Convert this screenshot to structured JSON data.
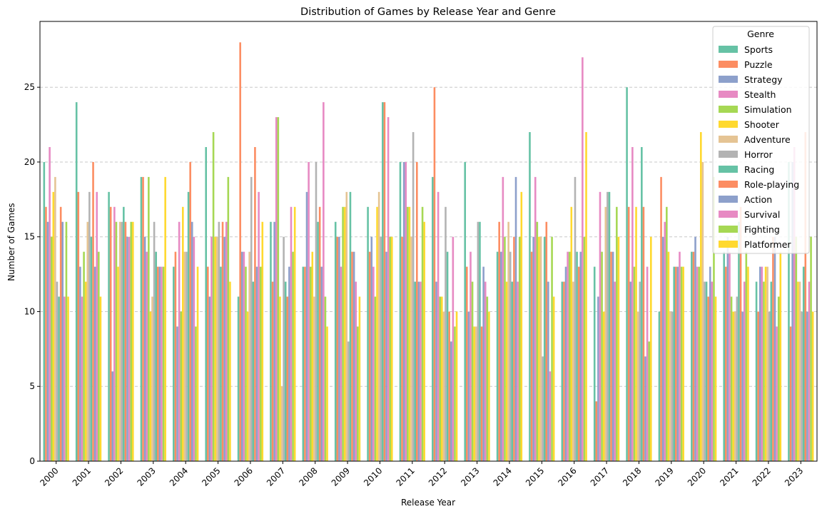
{
  "chart_data": {
    "type": "bar",
    "title": "Distribution of Games by Release Year and Genre",
    "xlabel": "Release Year",
    "ylabel": "Number of Games",
    "ylim": [
      0,
      29.4
    ],
    "yticks": [
      0,
      5,
      10,
      15,
      20,
      25
    ],
    "grid": "y-dashed",
    "legend": {
      "title": "Genre",
      "placement": "top-right"
    },
    "categories": [
      "2000",
      "2001",
      "2002",
      "2003",
      "2004",
      "2005",
      "2006",
      "2007",
      "2008",
      "2009",
      "2010",
      "2011",
      "2012",
      "2013",
      "2014",
      "2015",
      "2016",
      "2017",
      "2018",
      "2019",
      "2020",
      "2021",
      "2022",
      "2023"
    ],
    "series": [
      {
        "name": "Sports",
        "color": "#66c2a5",
        "values": [
          20,
          24,
          18,
          19,
          13,
          21,
          11,
          16,
          13,
          16,
          17,
          20,
          19,
          20,
          14,
          22,
          12,
          13,
          25,
          10,
          14,
          14,
          12,
          20
        ]
      },
      {
        "name": "Puzzle",
        "color": "#fc8d62",
        "values": [
          17,
          18,
          17,
          19,
          14,
          13,
          28,
          12,
          13,
          15,
          14,
          15,
          25,
          13,
          16,
          14,
          12,
          4,
          17,
          19,
          14,
          13,
          10,
          9
        ]
      },
      {
        "name": "Strategy",
        "color": "#8da0cb",
        "values": [
          16,
          13,
          6,
          15,
          9,
          11,
          14,
          16,
          18,
          15,
          15,
          20,
          12,
          10,
          14,
          15,
          13,
          11,
          12,
          15,
          15,
          15,
          13,
          20
        ]
      },
      {
        "name": "Stealth",
        "color": "#e78ac3",
        "values": [
          21,
          11,
          17,
          14,
          16,
          15,
          14,
          23,
          20,
          13,
          13,
          20,
          18,
          14,
          19,
          19,
          14,
          18,
          21,
          16,
          13,
          14,
          13,
          21
        ]
      },
      {
        "name": "Simulation",
        "color": "#a6d854",
        "values": [
          15,
          14,
          16,
          19,
          10,
          22,
          13,
          23,
          13,
          17,
          11,
          17,
          11,
          12,
          15,
          16,
          14,
          14,
          13,
          17,
          13,
          11,
          12,
          15
        ]
      },
      {
        "name": "Shooter",
        "color": "#ffd92f",
        "values": [
          18,
          12,
          13,
          10,
          17,
          15,
          10,
          11,
          14,
          17,
          17,
          17,
          11,
          9,
          12,
          15,
          17,
          10,
          17,
          14,
          22,
          10,
          13,
          12
        ]
      },
      {
        "name": "Adventure",
        "color": "#e5c494",
        "values": [
          19,
          16,
          16,
          11,
          14,
          15,
          14,
          5,
          11,
          18,
          18,
          15,
          10,
          9,
          16,
          15,
          12,
          17,
          10,
          10,
          20,
          10,
          13,
          12
        ]
      },
      {
        "name": "Horror",
        "color": "#b3b3b3",
        "values": [
          12,
          18,
          16,
          16,
          14,
          16,
          19,
          15,
          20,
          8,
          15,
          22,
          17,
          16,
          14,
          7,
          19,
          18,
          12,
          10,
          12,
          11,
          10,
          10
        ]
      },
      {
        "name": "Racing",
        "color": "#66c2a5",
        "values": [
          11,
          15,
          17,
          14,
          18,
          13,
          12,
          12,
          16,
          18,
          24,
          12,
          14,
          16,
          12,
          15,
          14,
          18,
          21,
          13,
          12,
          16,
          12,
          13
        ]
      },
      {
        "name": "Role-playing",
        "color": "#fc8d62",
        "values": [
          17,
          20,
          16,
          13,
          20,
          16,
          21,
          11,
          17,
          14,
          24,
          20,
          10,
          9,
          15,
          16,
          13,
          14,
          17,
          13,
          11,
          17,
          15,
          22
        ]
      },
      {
        "name": "Action",
        "color": "#8da0cb",
        "values": [
          16,
          13,
          15,
          13,
          16,
          15,
          13,
          13,
          13,
          14,
          14,
          12,
          8,
          13,
          19,
          12,
          14,
          14,
          7,
          13,
          13,
          10,
          15,
          10
        ]
      },
      {
        "name": "Survival",
        "color": "#e78ac3",
        "values": [
          11,
          18,
          15,
          13,
          15,
          16,
          18,
          17,
          24,
          12,
          23,
          12,
          15,
          12,
          12,
          6,
          27,
          12,
          13,
          14,
          12,
          12,
          9,
          12
        ]
      },
      {
        "name": "Fighting",
        "color": "#a6d854",
        "values": [
          16,
          14,
          16,
          13,
          9,
          19,
          13,
          14,
          11,
          9,
          15,
          17,
          9,
          11,
          15,
          15,
          15,
          17,
          8,
          13,
          19,
          14,
          11,
          15
        ]
      },
      {
        "name": "Platformer",
        "color": "#ffd92f",
        "values": [
          11,
          11,
          16,
          19,
          13,
          12,
          16,
          17,
          9,
          11,
          15,
          16,
          10,
          10,
          18,
          11,
          22,
          15,
          15,
          13,
          11,
          13,
          14,
          10
        ]
      }
    ]
  }
}
